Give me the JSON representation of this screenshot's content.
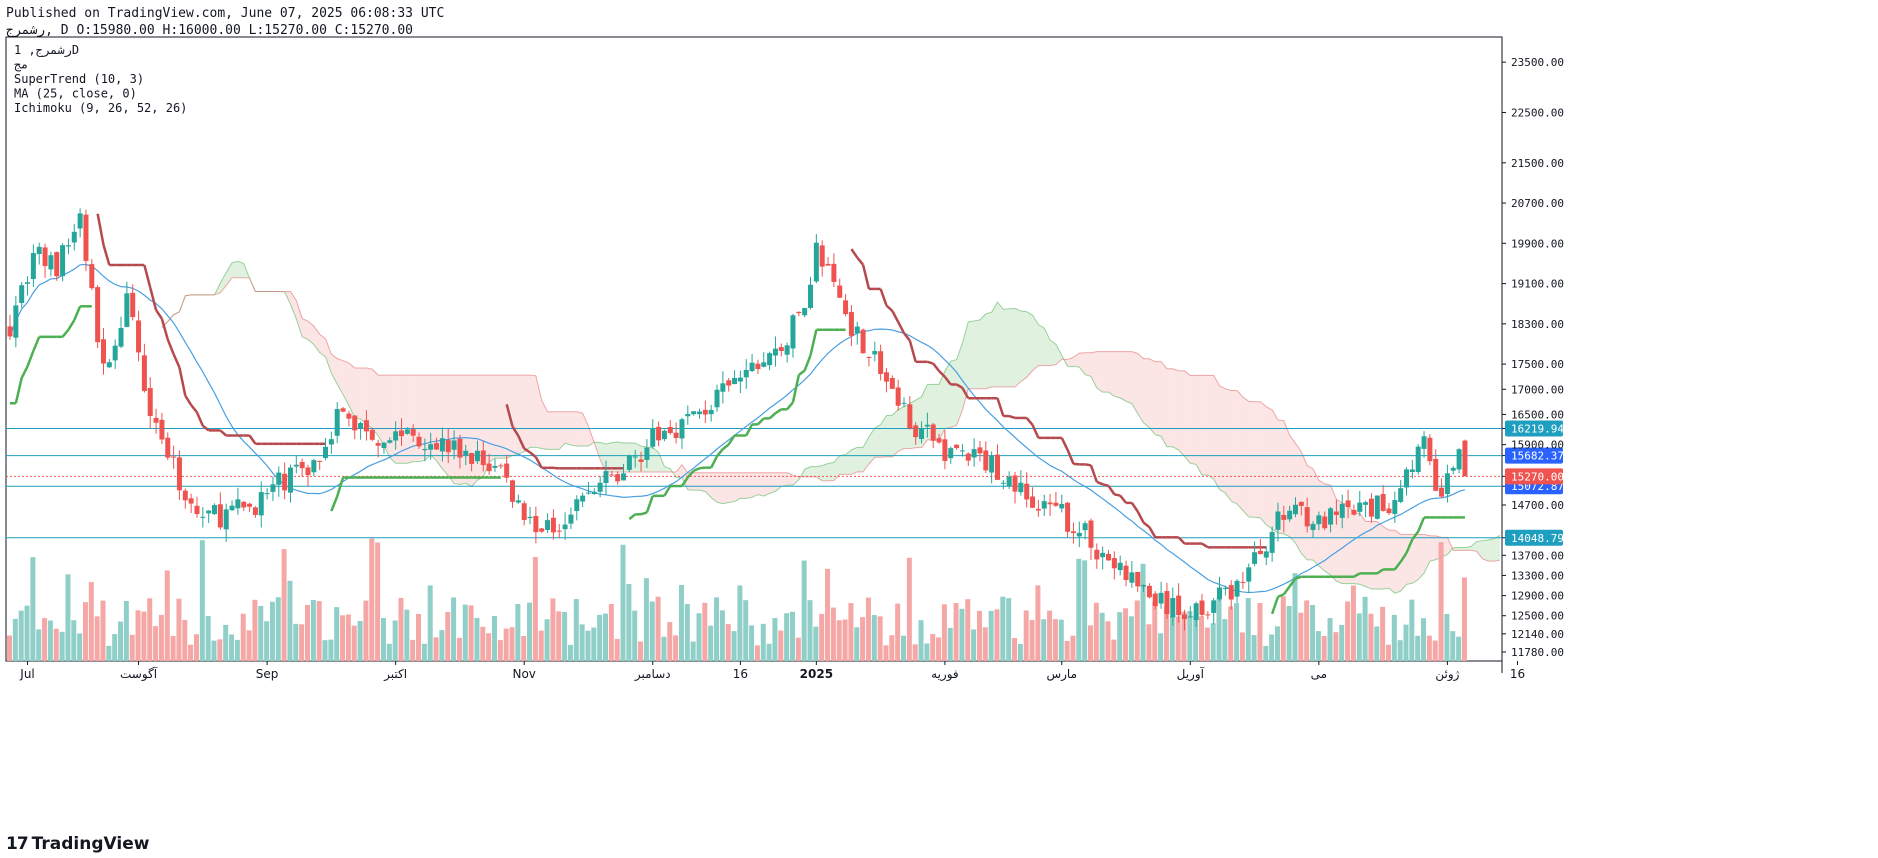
{
  "header": {
    "published": "Published on TradingView.com, June 07, 2025 06:08:33 UTC",
    "ohlc": "رشمرج, D O:15980.00 H:16000.00 L:15270.00 C:15270.00"
  },
  "legend": {
    "line1": "رشمرج, 1D",
    "line2": "مج",
    "supertrend": "SuperTrend (10, 3)",
    "ma": "MA (25, close, 0)",
    "ichimoku": "Ichimoku (9, 26, 52, 26)"
  },
  "footer": {
    "brand": "TradingView",
    "logo_mark": "17"
  },
  "colors": {
    "up": "#26a69a",
    "down": "#ef5350",
    "up_vol": "#8fcfc8",
    "down_vol": "#f5a7a6",
    "supertrend_up": "#4caf50",
    "supertrend_down": "#b5494d",
    "ma": "#4a9fe2",
    "cloud_green": "#a5d6a7",
    "cloud_red": "#f4b4b4",
    "hline": "#1f9fbf",
    "close_line": "#ef5350"
  },
  "chart_data": {
    "type": "candlestick",
    "title": "رشمرج, 1D",
    "ylim": [
      11600,
      24000
    ],
    "price_axis_ticks": [
      11780,
      12140,
      12500,
      12900,
      13300,
      13700,
      14048.79,
      14700,
      15072.87,
      15270,
      15682.37,
      15900,
      16219.94,
      16500,
      17000,
      17500,
      18300,
      19100,
      19900,
      20700,
      21500,
      22500,
      23500
    ],
    "x_labels": [
      {
        "label": "Jul",
        "index": 3
      },
      {
        "label": "آگوست",
        "index": 22
      },
      {
        "label": "Sep",
        "index": 44
      },
      {
        "label": "اکتبر",
        "index": 66
      },
      {
        "label": "Nov",
        "index": 88
      },
      {
        "label": "دسامبر",
        "index": 110
      },
      {
        "label": "16",
        "index": 125
      },
      {
        "label": "2025",
        "index": 138
      },
      {
        "label": "فوریه",
        "index": 160
      },
      {
        "label": "مارس",
        "index": 180
      },
      {
        "label": "آوریل",
        "index": 202
      },
      {
        "label": "می",
        "index": 224
      },
      {
        "label": "ژوئن",
        "index": 246
      },
      {
        "label": "16",
        "index": 258
      }
    ],
    "horizontal_lines": [
      16219.94,
      15682.37,
      15072.87,
      14048.79
    ],
    "last_close": 15270.0,
    "bars": 250,
    "series": [
      {
        "name": "Close (approx.)",
        "anchors": [
          [
            0,
            18300
          ],
          [
            4,
            19700
          ],
          [
            8,
            19400
          ],
          [
            12,
            20400
          ],
          [
            16,
            17300
          ],
          [
            20,
            18700
          ],
          [
            24,
            16700
          ],
          [
            28,
            15400
          ],
          [
            32,
            14500
          ],
          [
            36,
            14500
          ],
          [
            40,
            14600
          ],
          [
            44,
            14900
          ],
          [
            48,
            15300
          ],
          [
            52,
            15500
          ],
          [
            56,
            16500
          ],
          [
            60,
            16250
          ],
          [
            64,
            16050
          ],
          [
            68,
            16150
          ],
          [
            72,
            16000
          ],
          [
            76,
            15800
          ],
          [
            80,
            15600
          ],
          [
            84,
            15400
          ],
          [
            88,
            14500
          ],
          [
            92,
            14200
          ],
          [
            96,
            14650
          ],
          [
            100,
            15000
          ],
          [
            104,
            15300
          ],
          [
            108,
            15800
          ],
          [
            112,
            16150
          ],
          [
            116,
            16400
          ],
          [
            120,
            16700
          ],
          [
            124,
            17100
          ],
          [
            128,
            17500
          ],
          [
            132,
            17800
          ],
          [
            136,
            18700
          ],
          [
            138,
            19800
          ],
          [
            140,
            19300
          ],
          [
            144,
            18300
          ],
          [
            148,
            17600
          ],
          [
            152,
            16700
          ],
          [
            156,
            16150
          ],
          [
            160,
            15800
          ],
          [
            164,
            15700
          ],
          [
            168,
            15500
          ],
          [
            172,
            15100
          ],
          [
            176,
            14600
          ],
          [
            180,
            14500
          ],
          [
            184,
            14100
          ],
          [
            188,
            13600
          ],
          [
            192,
            13200
          ],
          [
            196,
            12800
          ],
          [
            200,
            12550
          ],
          [
            204,
            12700
          ],
          [
            208,
            12900
          ],
          [
            212,
            13400
          ],
          [
            216,
            14200
          ],
          [
            220,
            14750
          ],
          [
            224,
            14300
          ],
          [
            228,
            14500
          ],
          [
            232,
            14600
          ],
          [
            236,
            14700
          ],
          [
            240,
            15600
          ],
          [
            242,
            15900
          ],
          [
            244,
            14900
          ],
          [
            246,
            15100
          ],
          [
            248,
            15800
          ],
          [
            249,
            15270
          ]
        ]
      },
      {
        "name": "SuperTrend",
        "description": "Green support below price, dark red resistance above price"
      },
      {
        "name": "MA (25, close, 0)",
        "description": "Blue moving average"
      },
      {
        "name": "Ichimoku (9, 26, 52, 26)",
        "description": "Kumo cloud, green when bullish, red when bearish"
      },
      {
        "name": "Volume",
        "description": "Histogram at bottom coloured by candle direction"
      }
    ]
  }
}
